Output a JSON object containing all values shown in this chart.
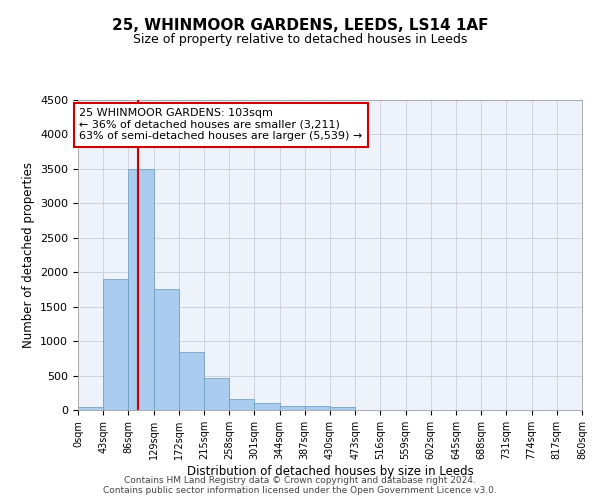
{
  "title": "25, WHINMOOR GARDENS, LEEDS, LS14 1AF",
  "subtitle": "Size of property relative to detached houses in Leeds",
  "xlabel": "Distribution of detached houses by size in Leeds",
  "ylabel": "Number of detached properties",
  "annotation_line1": "25 WHINMOOR GARDENS: 103sqm",
  "annotation_line2": "← 36% of detached houses are smaller (3,211)",
  "annotation_line3": "63% of semi-detached houses are larger (5,539) →",
  "property_size_sqm": 103,
  "bin_width": 43,
  "bins": [
    0,
    43,
    86,
    129,
    172,
    215,
    258,
    301,
    344,
    387,
    430,
    473,
    516,
    559,
    602,
    645,
    688,
    731,
    774,
    817,
    860
  ],
  "bar_heights": [
    50,
    1900,
    3500,
    1750,
    840,
    460,
    160,
    100,
    65,
    55,
    40,
    0,
    0,
    0,
    0,
    0,
    0,
    0,
    0,
    0
  ],
  "bar_color": "#aaccee",
  "bar_edge_color": "#6699bb",
  "grid_color": "#ccccdd",
  "vline_color": "#cc0000",
  "box_edge_color": "#cc0000",
  "ylim": [
    0,
    4500
  ],
  "yticks": [
    0,
    500,
    1000,
    1500,
    2000,
    2500,
    3000,
    3500,
    4000,
    4500
  ],
  "footer_line1": "Contains HM Land Registry data © Crown copyright and database right 2024.",
  "footer_line2": "Contains public sector information licensed under the Open Government Licence v3.0.",
  "bg_color": "#eef2fa"
}
